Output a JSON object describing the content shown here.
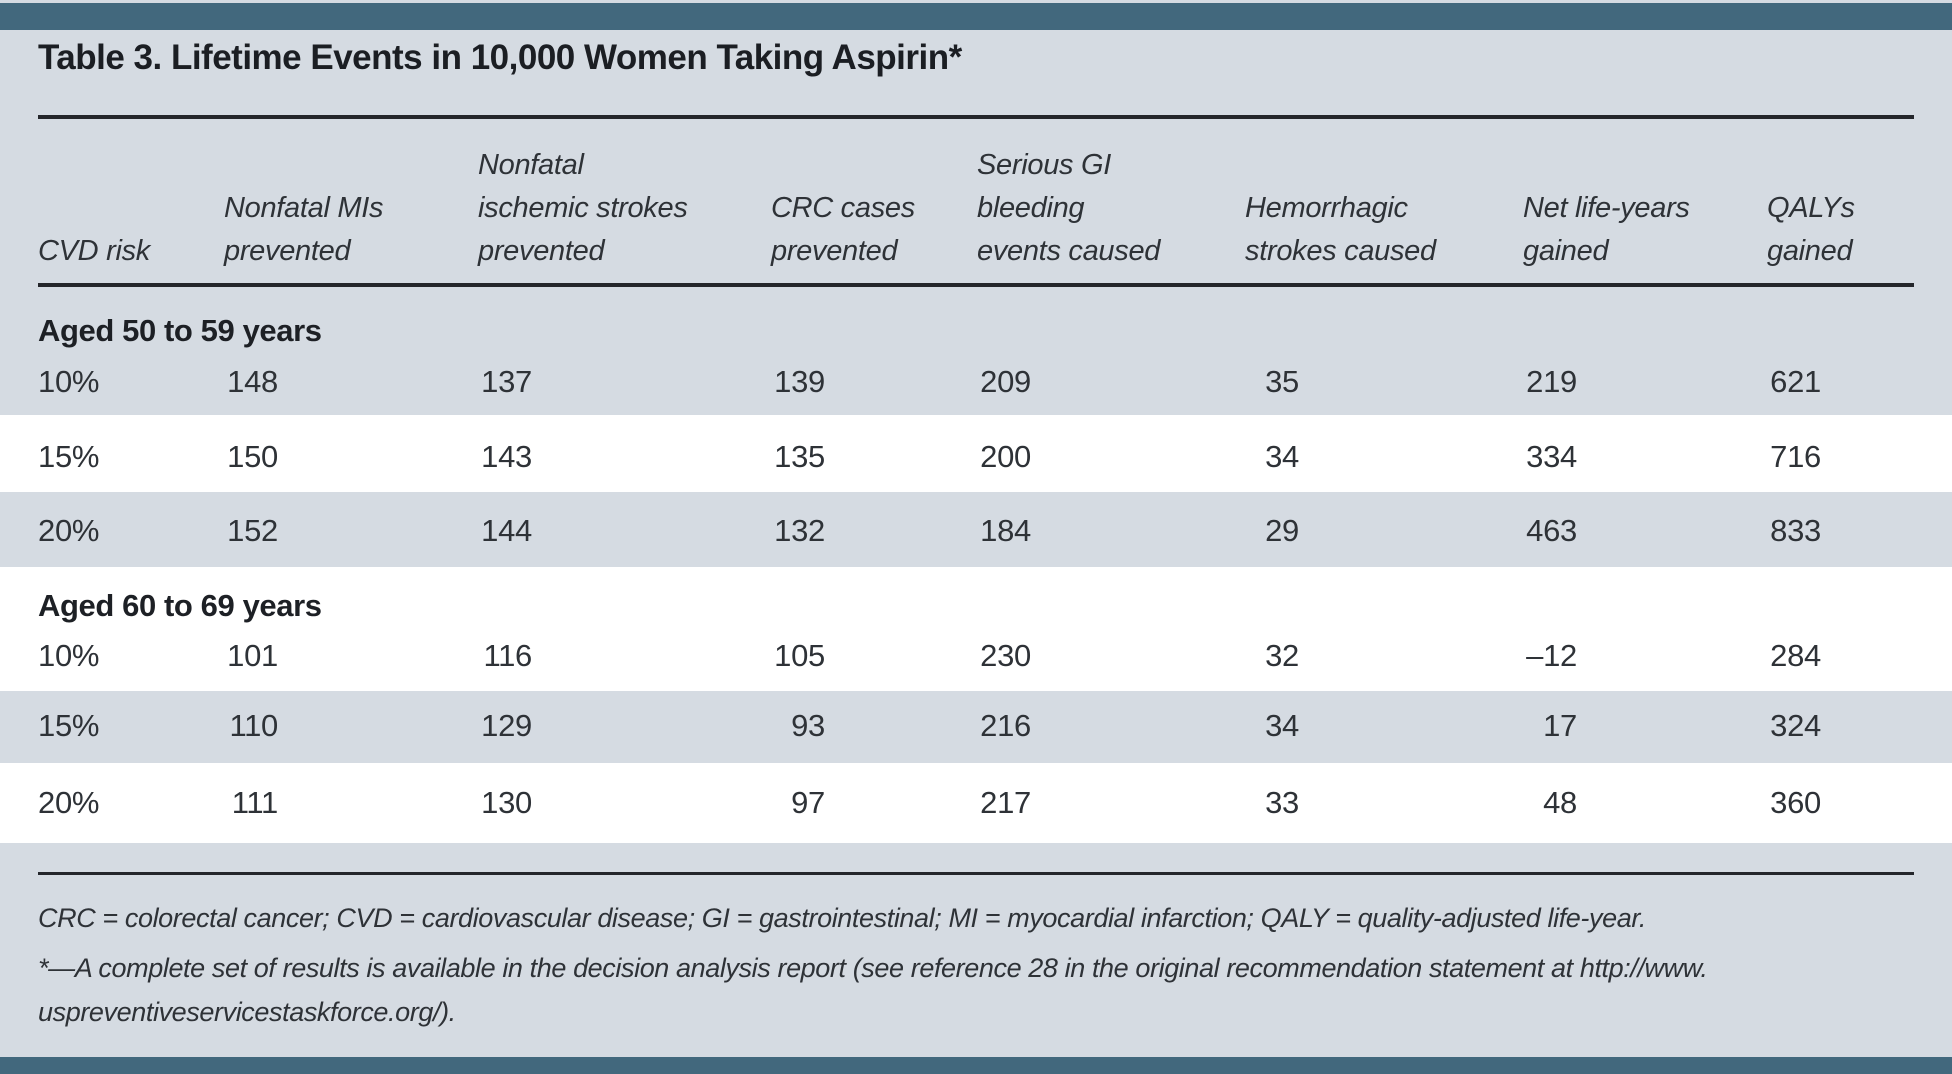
{
  "title": "Table 3. Lifetime Events in 10,000 Women Taking Aspirin*",
  "columns": [
    "CVD risk",
    "Nonfatal MIs\nprevented",
    "Nonfatal\nischemic strokes\nprevented",
    "CRC cases\nprevented",
    "Serious GI\nbleeding\nevents caused",
    "Hemorrhagic\nstrokes caused",
    "Net life-years\ngained",
    "QALYs\ngained"
  ],
  "sections": [
    {
      "header": "Aged 50 to 59 years",
      "rows": [
        {
          "risk": "10%",
          "values": [
            "148",
            "137",
            "139",
            "209",
            "35",
            "219",
            "621"
          ]
        },
        {
          "risk": "15%",
          "values": [
            "150",
            "143",
            "135",
            "200",
            "34",
            "334",
            "716"
          ]
        },
        {
          "risk": "20%",
          "values": [
            "152",
            "144",
            "132",
            "184",
            "29",
            "463",
            "833"
          ]
        }
      ]
    },
    {
      "header": "Aged 60 to 69 years",
      "rows": [
        {
          "risk": "10%",
          "values": [
            "101",
            "116",
            "105",
            "230",
            "32",
            "–12",
            "284"
          ]
        },
        {
          "risk": "15%",
          "values": [
            "110",
            "129",
            "93",
            "216",
            "34",
            "17",
            "324"
          ]
        },
        {
          "risk": "20%",
          "values": [
            "111",
            "130",
            "97",
            "217",
            "33",
            "48",
            "360"
          ]
        }
      ]
    }
  ],
  "footnotes": [
    "CRC = colorectal cancer; CVD = cardiovascular disease; GI = gastrointestinal; MI = myocardial infarction; QALY = quality-adjusted life-year.",
    "*—A complete set of results is available in the decision analysis report (see reference 28 in the original recommendation statement at http://www. uspreventiveservicestaskforce.org/)."
  ],
  "colors": {
    "accent_bar": "#42687d",
    "page_bg": "#d5dbe2",
    "row_alt": "#ffffff",
    "rule": "#24262b",
    "text": "#2e3237"
  }
}
